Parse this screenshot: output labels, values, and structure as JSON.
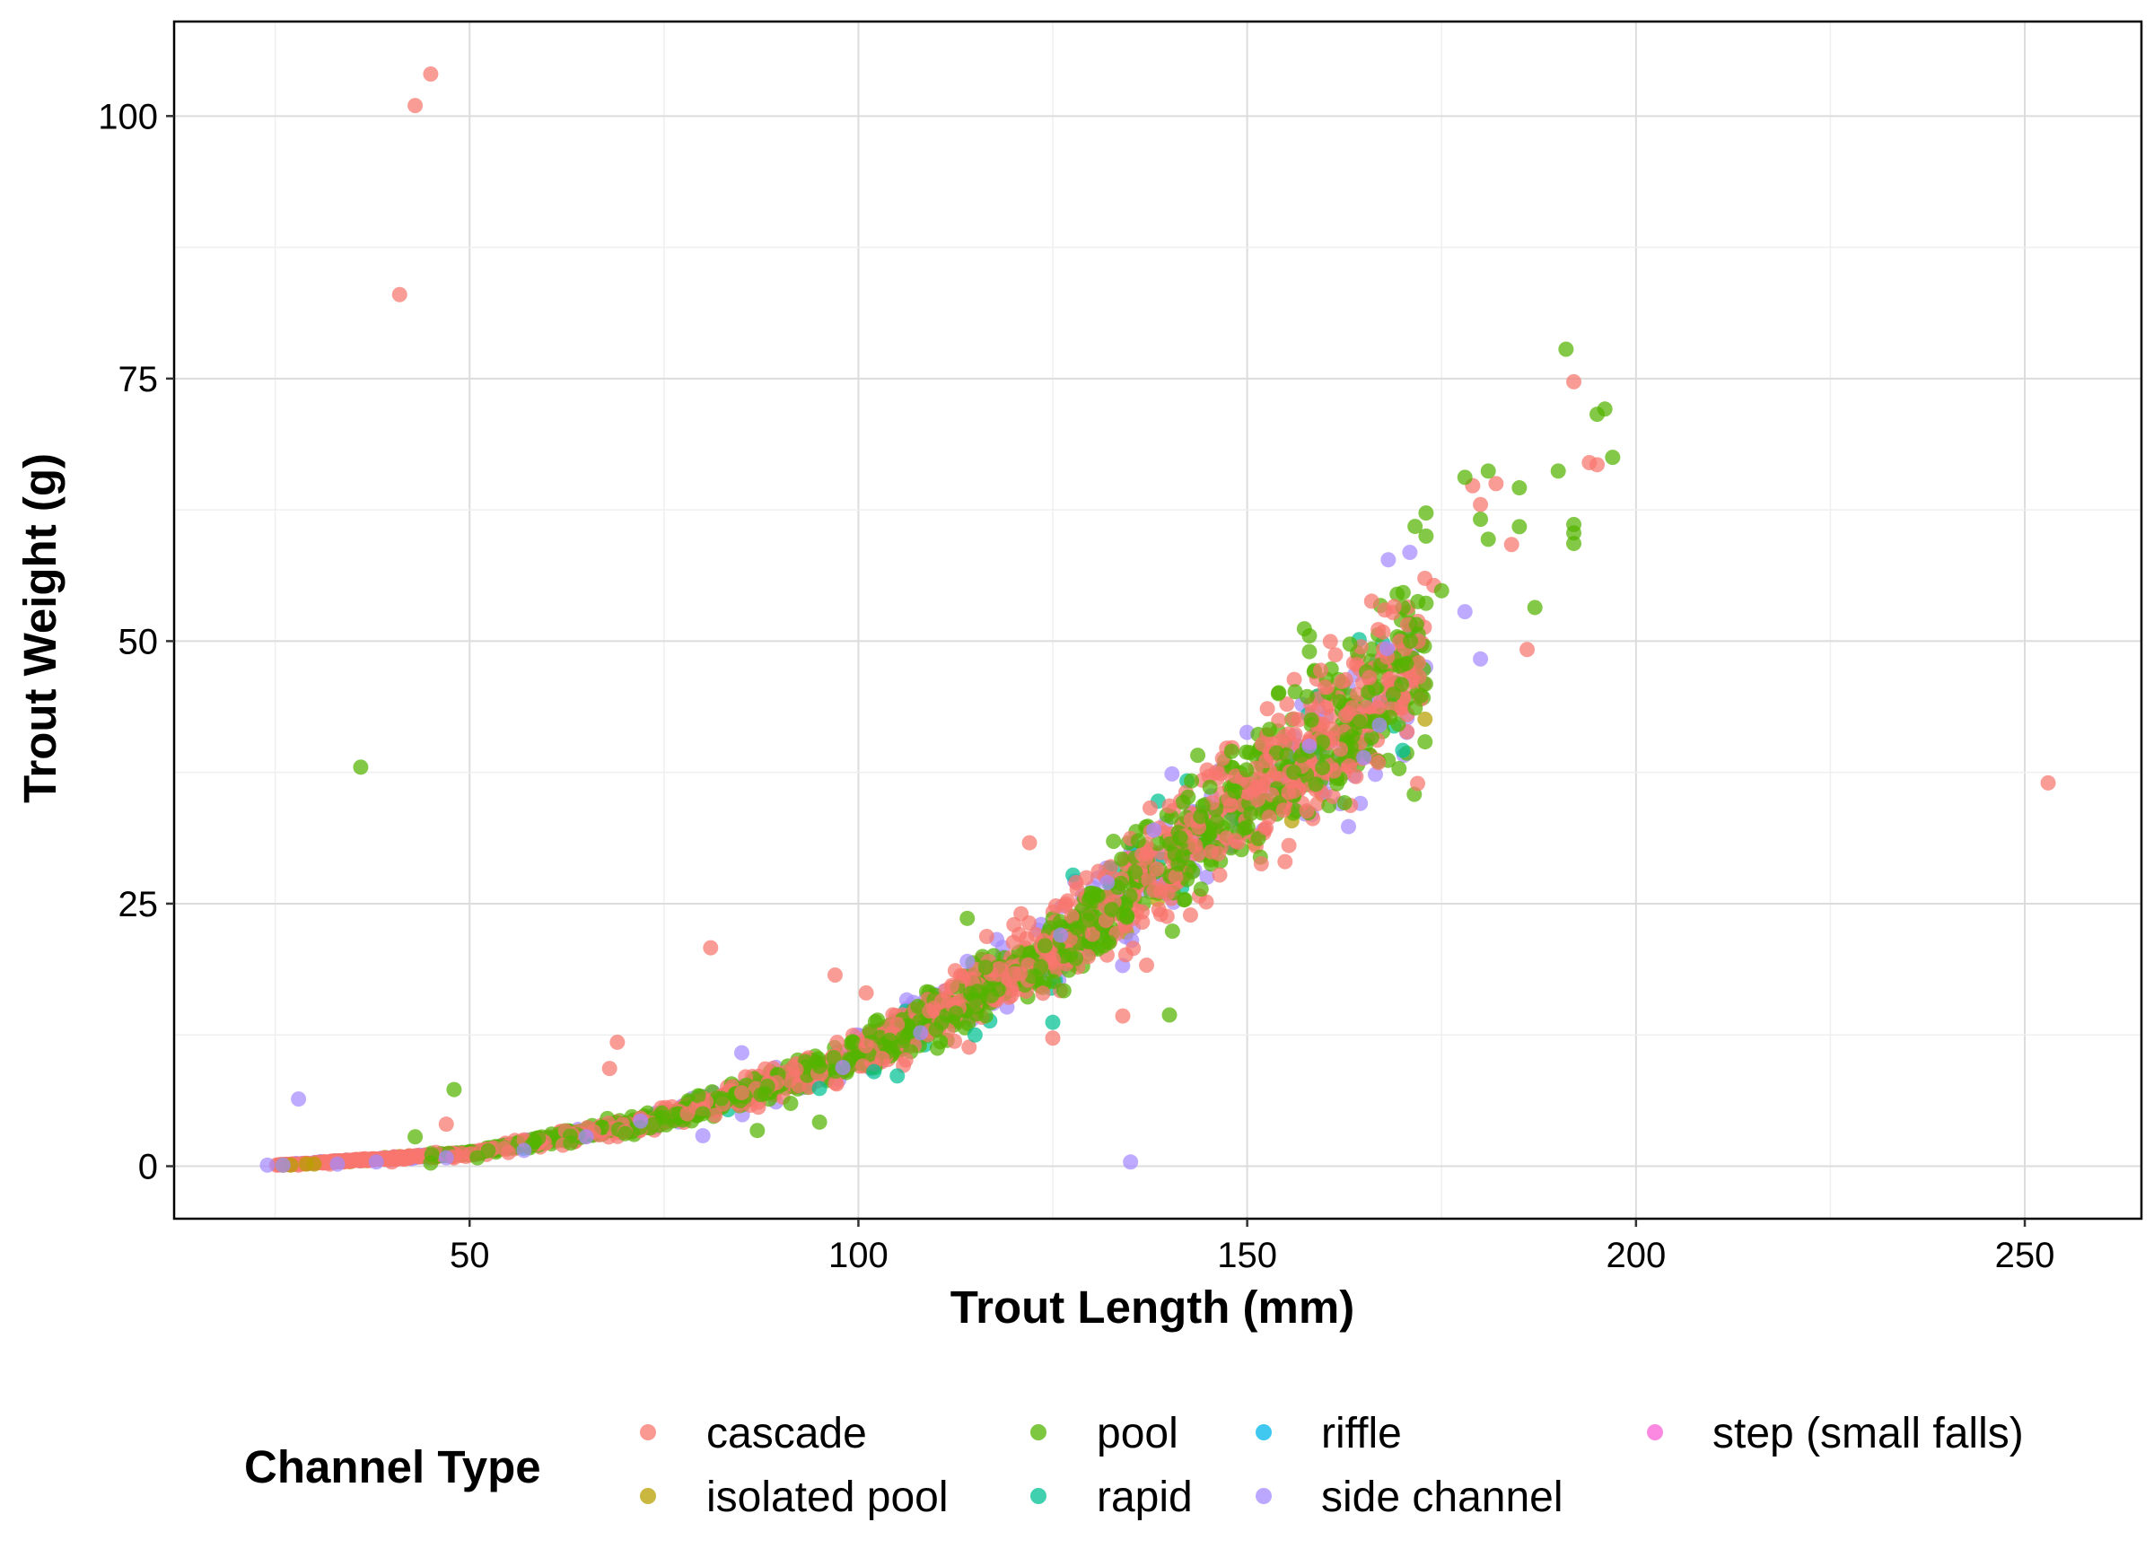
{
  "chart_data": {
    "type": "scatter",
    "title": "",
    "xlabel": "Trout Length (mm)",
    "ylabel": "Trout Weight (g)",
    "xlim": [
      12,
      265
    ],
    "ylim": [
      -5,
      109
    ],
    "x_ticks": [
      50,
      100,
      150,
      200,
      250
    ],
    "y_ticks": [
      0,
      25,
      50,
      75,
      100
    ],
    "grid": true,
    "legend": {
      "title": "Channel Type",
      "placement": "bottom",
      "entries": [
        {
          "name": "cascade",
          "color": "#F8766D"
        },
        {
          "name": "isolated pool",
          "color": "#B79F00"
        },
        {
          "name": "pool",
          "color": "#53B400"
        },
        {
          "name": "rapid",
          "color": "#00C094"
        },
        {
          "name": "riffle",
          "color": "#00B6EB"
        },
        {
          "name": "side channel",
          "color": "#A58AFF"
        },
        {
          "name": "step (small falls)",
          "color": "#FB61D7"
        }
      ]
    },
    "trend": {
      "description_free_note": "",
      "approx_weight_g_by_length_mm": [
        [
          25,
          0.1
        ],
        [
          50,
          1.2
        ],
        [
          75,
          4.5
        ],
        [
          100,
          10.5
        ],
        [
          125,
          20.5
        ],
        [
          150,
          35
        ],
        [
          175,
          49
        ],
        [
          200,
          67
        ]
      ]
    },
    "series": [
      {
        "name": "cascade",
        "points": [
          [
            45,
            104
          ],
          [
            43,
            101
          ],
          [
            41,
            83
          ],
          [
            253,
            36.5
          ],
          [
            81,
            20.8
          ],
          [
            122,
            30.8
          ],
          [
            97,
            18.2
          ],
          [
            69,
            11.8
          ],
          [
            68,
            9.3
          ],
          [
            47,
            4.0
          ],
          [
            134,
            14.3
          ],
          [
            125,
            12.2
          ],
          [
            192,
            74.7
          ],
          [
            194,
            67.0
          ],
          [
            195,
            66.8
          ],
          [
            182,
            65.0
          ],
          [
            179,
            64.8
          ],
          [
            180,
            63.0
          ],
          [
            184,
            59.2
          ],
          [
            174,
            55.3
          ],
          [
            166,
            53.8
          ],
          [
            186,
            49.2
          ],
          [
            172,
            50.0
          ],
          [
            168,
            48.5
          ],
          [
            160,
            45.6
          ],
          [
            158,
            40.3
          ],
          [
            156,
            42.6
          ],
          [
            162,
            39.7
          ],
          [
            164,
            37.1
          ],
          [
            152,
            36.2
          ],
          [
            146,
            37.5
          ],
          [
            140,
            34.3
          ],
          [
            137,
            30.6
          ],
          [
            135,
            31.2
          ],
          [
            128,
            27.0
          ],
          [
            120,
            23.0
          ],
          [
            112,
            17.2
          ],
          [
            105,
            13.5
          ],
          [
            101,
            16.5
          ],
          [
            92,
            9.2
          ],
          [
            85,
            7.0
          ],
          [
            78,
            5.0
          ],
          [
            70,
            3.3
          ],
          [
            62,
            2.0
          ],
          [
            55,
            1.3
          ],
          [
            48,
            0.8
          ],
          [
            40,
            0.4
          ],
          [
            32,
            0.2
          ],
          [
            28,
            0.1
          ]
        ]
      },
      {
        "name": "isolated pool",
        "points": [
          [
            26,
            0.1
          ],
          [
            27,
            0.1
          ],
          [
            29,
            0.2
          ],
          [
            30,
            0.2
          ]
        ]
      },
      {
        "name": "pool",
        "points": [
          [
            191,
            77.8
          ],
          [
            196,
            72.1
          ],
          [
            195,
            71.6
          ],
          [
            197,
            67.5
          ],
          [
            190,
            66.2
          ],
          [
            181,
            66.2
          ],
          [
            178,
            65.6
          ],
          [
            185,
            64.6
          ],
          [
            192,
            61.1
          ],
          [
            192,
            60.3
          ],
          [
            192,
            59.3
          ],
          [
            173,
            62.2
          ],
          [
            173,
            60.0
          ],
          [
            180,
            61.6
          ],
          [
            181,
            59.7
          ],
          [
            185,
            60.9
          ],
          [
            36,
            38.0
          ],
          [
            48,
            7.3
          ],
          [
            43,
            2.8
          ],
          [
            114,
            23.6
          ],
          [
            140,
            14.4
          ],
          [
            173,
            53.6
          ],
          [
            175,
            54.8
          ],
          [
            187,
            53.2
          ],
          [
            171,
            50.0
          ],
          [
            158,
            50.5
          ],
          [
            158,
            49.0
          ],
          [
            154,
            45.0
          ],
          [
            148,
            39.5
          ],
          [
            156,
            37.5
          ],
          [
            144,
            33.3
          ],
          [
            136,
            31.0
          ],
          [
            130,
            26.0
          ],
          [
            124,
            21.0
          ],
          [
            118,
            16.8
          ],
          [
            110,
            13.0
          ],
          [
            104,
            12.0
          ],
          [
            95,
            4.2
          ],
          [
            87,
            3.4
          ],
          [
            95,
            9.5
          ],
          [
            88,
            6.9
          ],
          [
            80,
            5.0
          ],
          [
            58,
            2.0
          ],
          [
            63,
            2.2
          ],
          [
            70,
            3.1
          ],
          [
            51,
            0.8
          ],
          [
            45,
            0.3
          ]
        ]
      },
      {
        "name": "rapid",
        "points": [
          [
            170,
            39.6
          ],
          [
            125,
            13.7
          ],
          [
            105,
            8.6
          ],
          [
            102,
            9.0
          ],
          [
            115,
            12.5
          ],
          [
            95,
            7.4
          ]
        ]
      },
      {
        "name": "riffle",
        "points": []
      },
      {
        "name": "side channel",
        "points": [
          [
            135,
            0.4
          ],
          [
            28,
            6.4
          ],
          [
            24,
            0.1
          ],
          [
            26,
            0.1
          ],
          [
            33,
            0.2
          ],
          [
            178,
            52.8
          ],
          [
            180,
            48.3
          ],
          [
            167,
            42.0
          ],
          [
            168,
            49.3
          ],
          [
            158,
            40.0
          ],
          [
            165,
            38.9
          ],
          [
            138,
            32.0
          ],
          [
            132,
            27.0
          ],
          [
            126,
            22.0
          ],
          [
            114,
            19.5
          ],
          [
            108,
            12.7
          ],
          [
            98,
            9.4
          ],
          [
            85,
            10.8
          ],
          [
            80,
            2.9
          ],
          [
            72,
            4.3
          ],
          [
            65,
            2.8
          ],
          [
            57,
            1.5
          ],
          [
            47,
            0.8
          ],
          [
            38,
            0.4
          ]
        ]
      },
      {
        "name": "step (small falls)",
        "points": []
      }
    ]
  }
}
